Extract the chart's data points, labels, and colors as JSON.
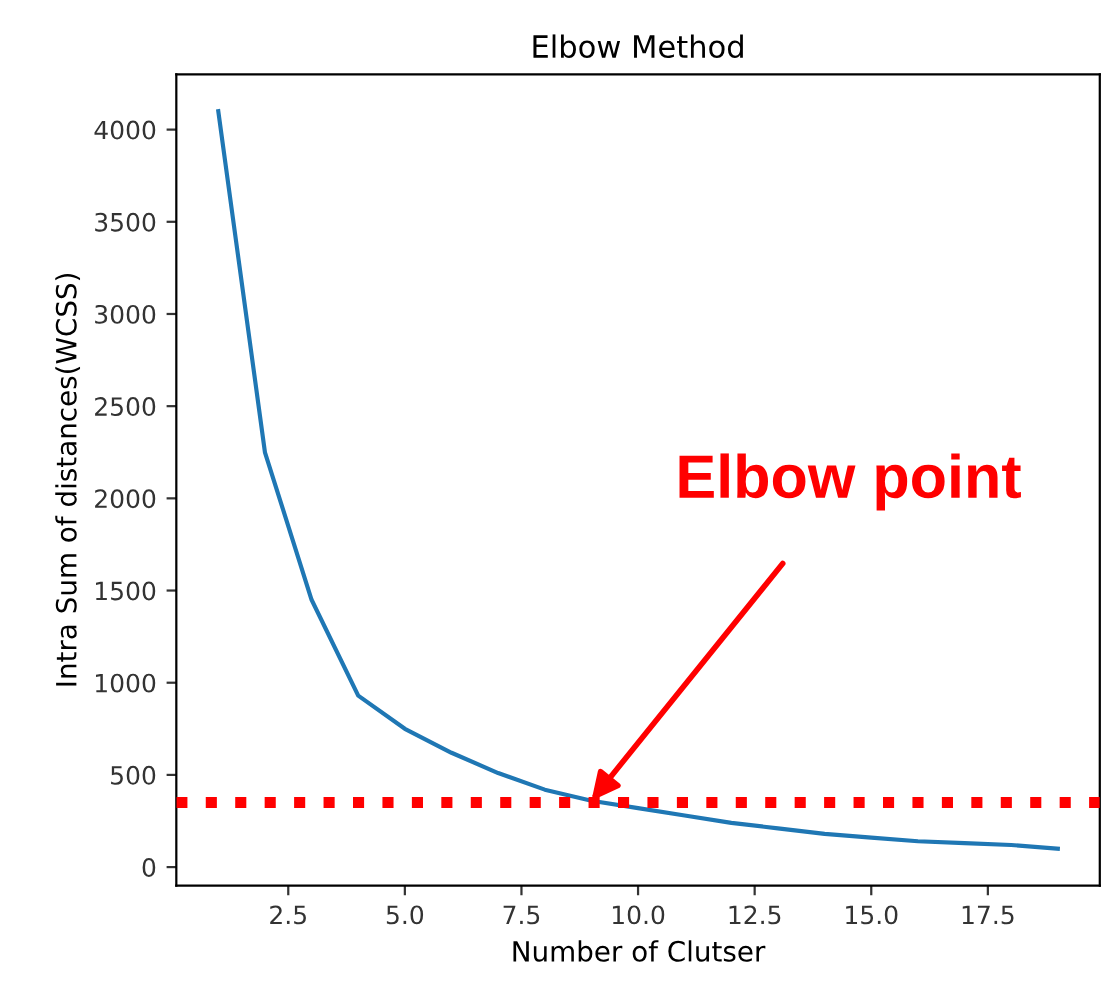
{
  "chart_data": {
    "type": "line",
    "title": "Elbow Method",
    "xlabel": "Number of Clutser",
    "ylabel": "Intra Sum of distances(WCSS)",
    "x": [
      1,
      2,
      3,
      4,
      5,
      6,
      7,
      8,
      9,
      10,
      11,
      12,
      13,
      14,
      15,
      16,
      17,
      18,
      19
    ],
    "series": [
      {
        "color": "#1f77b4",
        "values": [
          4100,
          2250,
          1450,
          930,
          750,
          620,
          510,
          420,
          360,
          320,
          280,
          240,
          210,
          180,
          160,
          140,
          130,
          120,
          100
        ]
      }
    ],
    "xlim": [
      0.1,
      19.9
    ],
    "xticks": [
      2.5,
      {
        "value": 5,
        "label": "5.0"
      },
      7.5,
      {
        "value": 10,
        "label": "10.0"
      },
      12.5,
      {
        "value": 15,
        "label": "15.0"
      },
      17.5
    ],
    "ylim": [
      -100,
      4300
    ],
    "yticks": [
      0,
      500,
      1000,
      1500,
      2000,
      2500,
      3000,
      3500,
      4000
    ],
    "ref_lines": [
      {
        "axis": "y",
        "value": 350,
        "color": "#ff0000",
        "line_style": "dotted"
      }
    ],
    "annotations": [
      {
        "text": "Elbow point",
        "x": 9,
        "y": 360
      }
    ],
    "grid": false,
    "legend": false
  }
}
